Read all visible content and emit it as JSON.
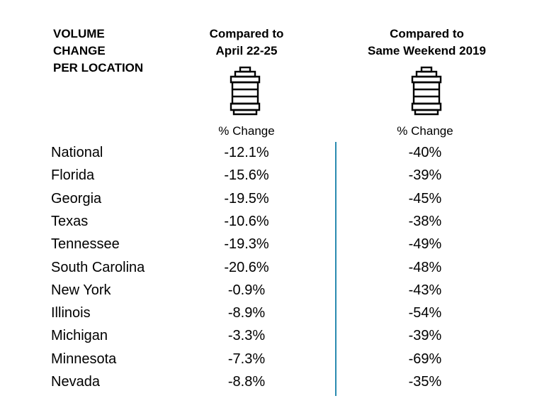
{
  "header": {
    "label": "VOLUME\nCHANGE\nPER LOCATION",
    "col1": "Compared to\nApril 22-25",
    "col2": "Compared to\nSame Weekend 2019",
    "sub1": "% Change",
    "sub2": "% Change"
  },
  "icons": {
    "col1": "keg-icon",
    "col2": "keg-icon"
  },
  "colors": {
    "divider": "#2a8bb0"
  },
  "chart_data": {
    "type": "table",
    "columns": [
      "Compared to April 22-25",
      "Compared to Same Weekend 2019"
    ],
    "rows": [
      {
        "location": "National",
        "vs_april": "-12.1%",
        "vs_2019": "-40%"
      },
      {
        "location": "Florida",
        "vs_april": "-15.6%",
        "vs_2019": "-39%"
      },
      {
        "location": "Georgia",
        "vs_april": "-19.5%",
        "vs_2019": "-45%"
      },
      {
        "location": "Texas",
        "vs_april": "-10.6%",
        "vs_2019": "-38%"
      },
      {
        "location": "Tennessee",
        "vs_april": "-19.3%",
        "vs_2019": "-49%"
      },
      {
        "location": "South Carolina",
        "vs_april": "-20.6%",
        "vs_2019": "-48%"
      },
      {
        "location": "New York",
        "vs_april": "-0.9%",
        "vs_2019": "-43%"
      },
      {
        "location": "Illinois",
        "vs_april": "-8.9%",
        "vs_2019": "-54%"
      },
      {
        "location": "Michigan",
        "vs_april": "-3.3%",
        "vs_2019": "-39%"
      },
      {
        "location": "Minnesota",
        "vs_april": "-7.3%",
        "vs_2019": "-69%"
      },
      {
        "location": "Nevada",
        "vs_april": "-8.8%",
        "vs_2019": "-35%"
      }
    ]
  }
}
